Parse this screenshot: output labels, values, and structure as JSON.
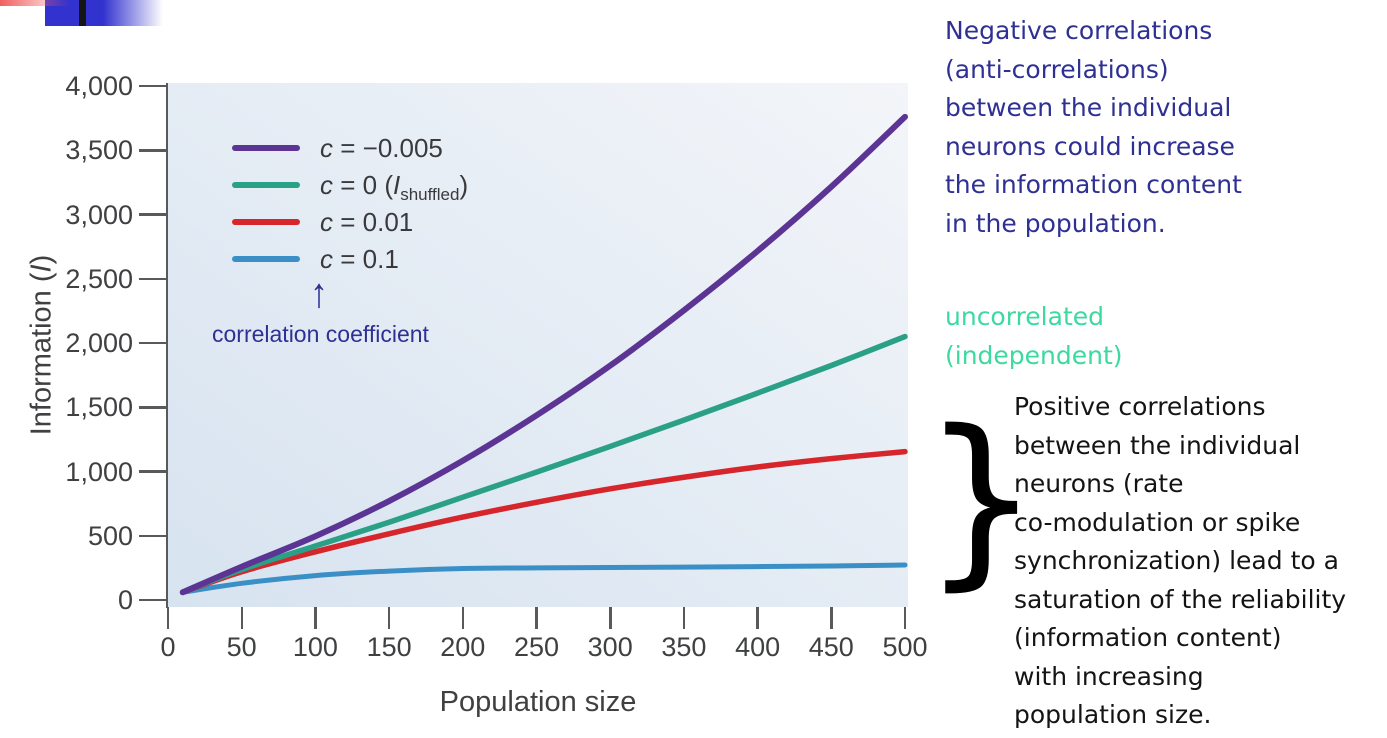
{
  "decor": {
    "red_bar_color": "#f15f5f",
    "blue_bar_color": "#3232cf",
    "black_stripe_color": "#151515"
  },
  "chart": {
    "ylabel": {
      "pre": "Information (",
      "var": "I",
      "post": ")"
    },
    "xlabel": "Population size",
    "annotation": {
      "arrow": "↑",
      "label": "correlation coefficient",
      "color": "#2e3093"
    },
    "legend": [
      {
        "var": "c",
        "text": " = −0.005",
        "color": "#5c3494"
      },
      {
        "var": "c",
        "text": " = 0 (",
        "var2": "I",
        "sub": "shuffled",
        "post": ")",
        "color": "#2aa187"
      },
      {
        "var": "c",
        "text": " = 0.01",
        "color": "#d6262c"
      },
      {
        "var": "c",
        "text": " = 0.1",
        "color": "#3a90c6"
      }
    ]
  },
  "chart_data": {
    "type": "line",
    "title": "",
    "xlabel": "Population size",
    "ylabel": "Information (I)",
    "xlim": [
      0,
      500
    ],
    "ylim": [
      0,
      4000
    ],
    "grid": false,
    "legend_position": "upper-left-inside",
    "x_ticks": [
      0,
      50,
      100,
      150,
      200,
      250,
      300,
      350,
      400,
      450,
      500
    ],
    "x_tick_labels": [
      "0",
      "50",
      "100",
      "150",
      "200",
      "250",
      "300",
      "350",
      "400",
      "450",
      "500"
    ],
    "y_ticks": [
      0,
      500,
      1000,
      1500,
      2000,
      2500,
      3000,
      3500,
      4000
    ],
    "y_tick_labels": [
      "0",
      "500",
      "1,000",
      "1,500",
      "2,000",
      "2,500",
      "3,000",
      "3,500",
      "4,000"
    ],
    "x": [
      10,
      50,
      100,
      150,
      200,
      250,
      300,
      350,
      400,
      450,
      500
    ],
    "series": [
      {
        "name": "c = −0.005",
        "color": "#5c3494",
        "stroke_width": 6,
        "values": [
          60,
          259,
          496,
          770,
          1084,
          1437,
          1824,
          2254,
          2716,
          3216,
          3760
        ]
      },
      {
        "name": "c = 0 (I_shuffled)",
        "color": "#2aa187",
        "stroke_width": 5.5,
        "values": [
          60,
          237,
          420,
          605,
          800,
          995,
          1195,
          1400,
          1610,
          1825,
          2050
        ]
      },
      {
        "name": "c = 0.01",
        "color": "#d6262c",
        "stroke_width": 5.5,
        "values": [
          60,
          220,
          375,
          515,
          645,
          760,
          865,
          955,
          1035,
          1100,
          1155
        ]
      },
      {
        "name": "c = 0.1",
        "color": "#3a90c6",
        "stroke_width": 5,
        "values": [
          60,
          130,
          190,
          225,
          245,
          250,
          253,
          256,
          260,
          265,
          272
        ]
      }
    ]
  },
  "notes": {
    "negative": {
      "color": "#2e3093",
      "lines": [
        "Negative correlations",
        "(anti-correlations)",
        "between the individual",
        "neurons could increase",
        "the information content",
        "in the population."
      ]
    },
    "uncorrelated": {
      "color": "#3cd9a1",
      "lines": [
        "uncorrelated",
        "(independent)"
      ]
    },
    "positive": {
      "color": "#141414",
      "brace": "}",
      "lines": [
        "Positive correlations",
        "between the individual",
        "neurons (rate",
        "co-modulation or spike",
        "synchronization) lead to a",
        "saturation of the reliability",
        "(information content)",
        "with increasing",
        "population size."
      ]
    }
  }
}
